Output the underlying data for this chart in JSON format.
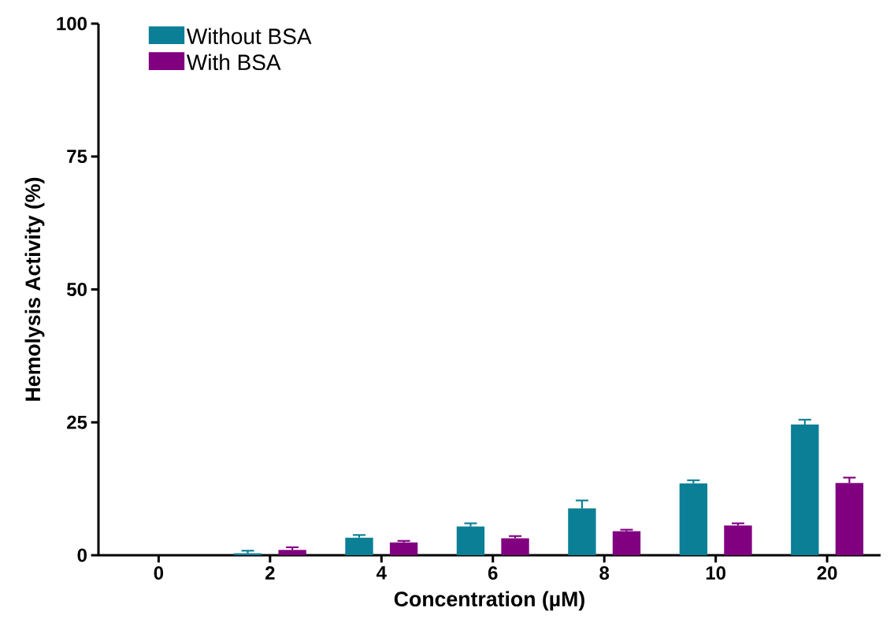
{
  "chart_data": {
    "type": "bar",
    "xlabel": "Concentration (µM)",
    "ylabel": "Hemolysis Activity (%)",
    "categories": [
      "0",
      "2",
      "4",
      "6",
      "8",
      "10",
      "20"
    ],
    "series": [
      {
        "name": "Without BSA",
        "color": "#0a7f96",
        "values": [
          0,
          0.35,
          3.3,
          5.4,
          8.8,
          13.5,
          24.6
        ],
        "errors": [
          null,
          0.5,
          0.5,
          0.6,
          1.5,
          0.6,
          0.9
        ]
      },
      {
        "name": "With BSA",
        "color": "#800080",
        "values": [
          0,
          1.0,
          2.4,
          3.2,
          4.5,
          5.6,
          13.6
        ],
        "errors": [
          null,
          0.5,
          0.3,
          0.4,
          0.3,
          0.4,
          1.0
        ]
      }
    ],
    "ylim": [
      0,
      100
    ],
    "yticks": [
      0,
      25,
      50,
      75,
      100
    ],
    "legend": "top left"
  }
}
